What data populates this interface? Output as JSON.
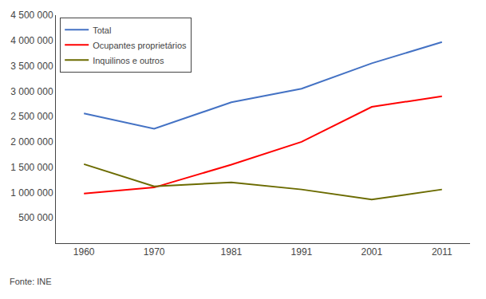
{
  "chart_data": {
    "type": "line",
    "x": [
      1960,
      1970,
      1981,
      1991,
      2001,
      2011
    ],
    "series": [
      {
        "name": "Total",
        "color": "#4472C4",
        "values": [
          2560000,
          2260000,
          2780000,
          3050000,
          3550000,
          3970000
        ]
      },
      {
        "name": "Ocupantes proprietários",
        "color": "#FF0000",
        "values": [
          980000,
          1100000,
          1550000,
          2000000,
          2690000,
          2900000
        ]
      },
      {
        "name": "Inquilinos e outros",
        "color": "#6B6B00",
        "values": [
          1560000,
          1120000,
          1200000,
          1060000,
          860000,
          1060000
        ]
      }
    ],
    "xlim": [
      1956,
      2015
    ],
    "xticks": [
      1960,
      1970,
      1981,
      1991,
      2001,
      2011
    ],
    "ylim": [
      0,
      4500000
    ],
    "yticks": [
      {
        "value": 500000,
        "label": "500 000"
      },
      {
        "value": 1000000,
        "label": "1 000 000"
      },
      {
        "value": 1500000,
        "label": "1 500 000"
      },
      {
        "value": 2000000,
        "label": "2 000 000"
      },
      {
        "value": 2500000,
        "label": "2 500 000"
      },
      {
        "value": 3000000,
        "label": "3 000 000"
      },
      {
        "value": 3500000,
        "label": "3 500 000"
      },
      {
        "value": 4000000,
        "label": "4 000 000"
      },
      {
        "value": 4500000,
        "label": "4 500 000"
      }
    ],
    "grid": false,
    "legend": "upper left",
    "annotations": [
      "Fonte: INE"
    ]
  }
}
